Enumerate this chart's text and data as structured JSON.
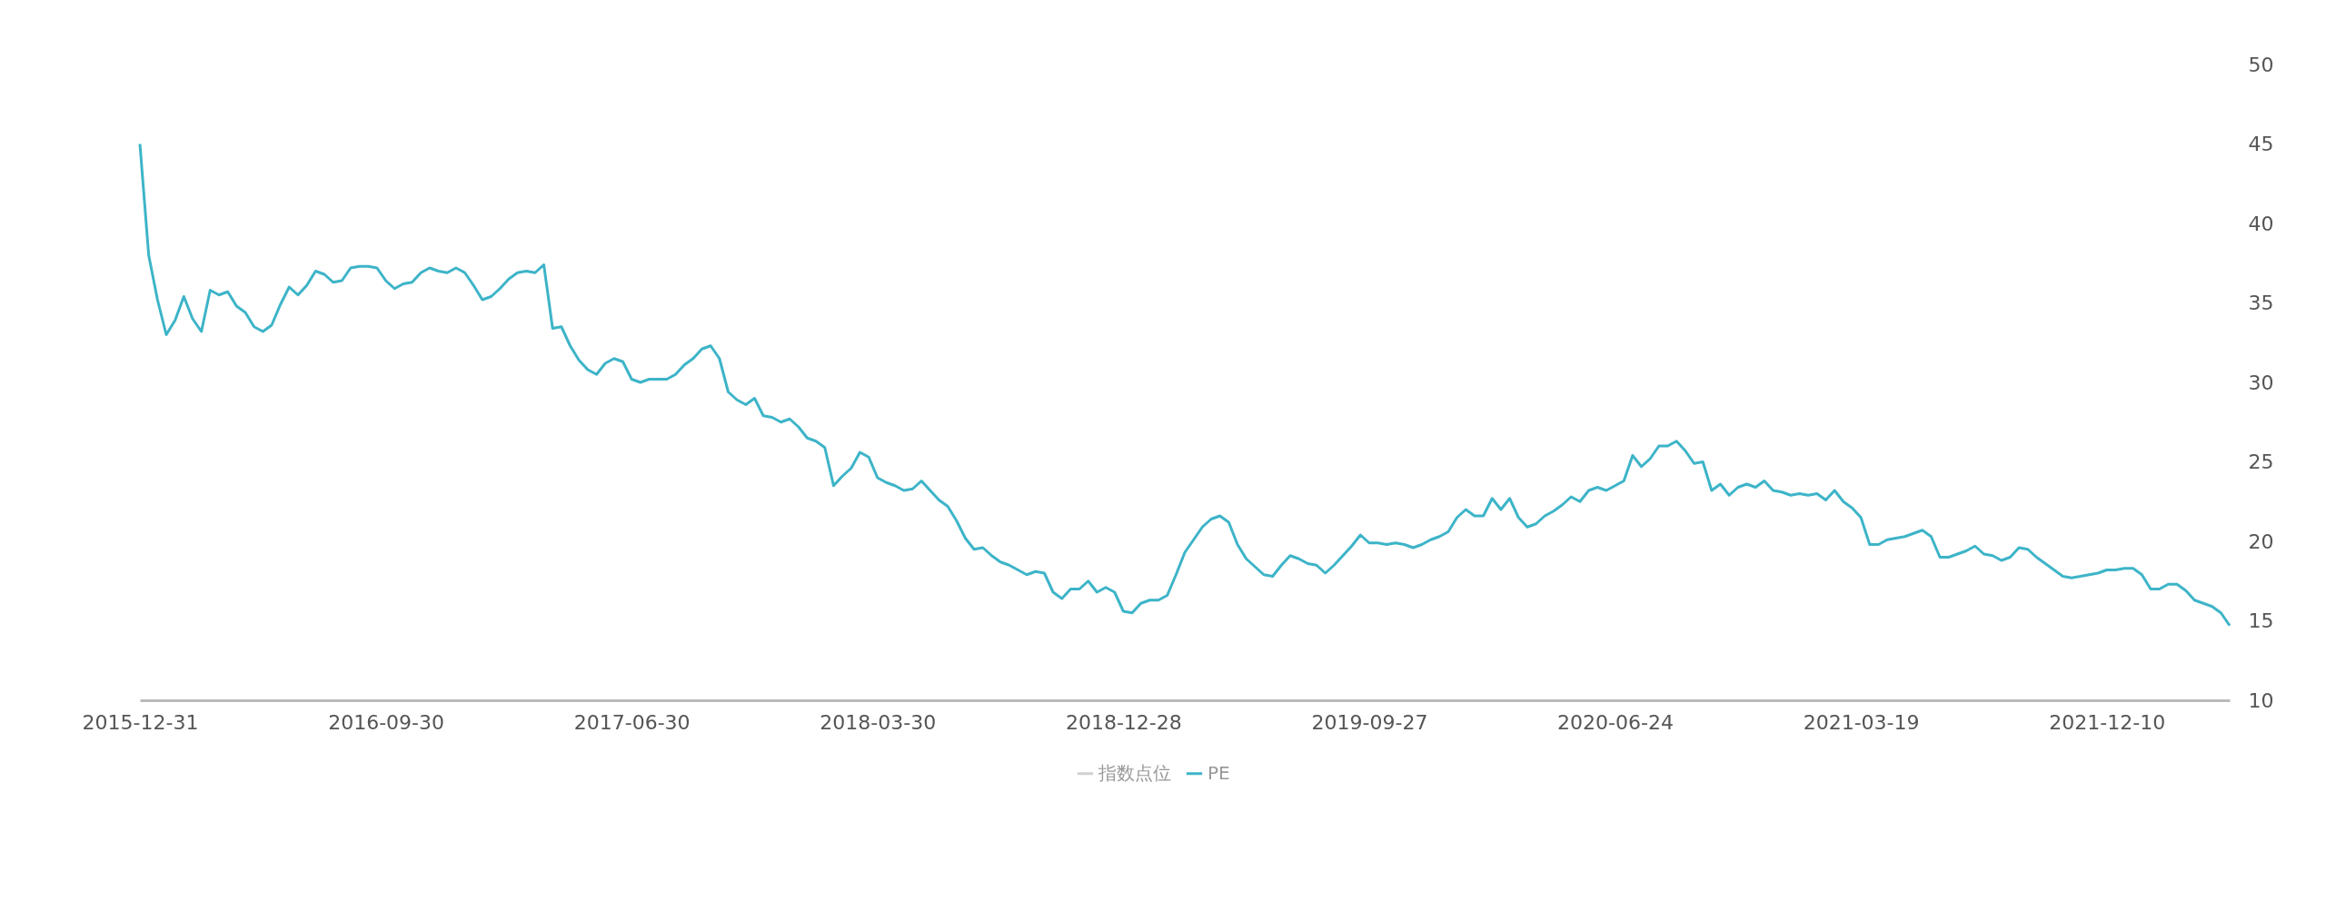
{
  "chart_data": {
    "type": "line",
    "categories": [
      "2015-12-31",
      null,
      null,
      null,
      null,
      null,
      null,
      null,
      null,
      null,
      null,
      null,
      null,
      null,
      null,
      null,
      null,
      null,
      null,
      null,
      null,
      null,
      null,
      null,
      null,
      null,
      null,
      null,
      "2016-09-30",
      null,
      null,
      null,
      null,
      null,
      null,
      null,
      null,
      null,
      null,
      null,
      null,
      null,
      null,
      null,
      null,
      null,
      null,
      null,
      null,
      null,
      null,
      null,
      null,
      null,
      null,
      null,
      "2017-06-30",
      null,
      null,
      null,
      null,
      null,
      null,
      null,
      null,
      null,
      null,
      null,
      null,
      null,
      null,
      null,
      null,
      null,
      null,
      null,
      null,
      null,
      null,
      null,
      null,
      null,
      null,
      null,
      "2018-03-30",
      null,
      null,
      null,
      null,
      null,
      null,
      null,
      null,
      null,
      null,
      null,
      null,
      null,
      null,
      null,
      null,
      null,
      null,
      null,
      null,
      null,
      null,
      null,
      null,
      null,
      null,
      null,
      "2018-12-28",
      null,
      null,
      null,
      null,
      null,
      null,
      null,
      null,
      null,
      null,
      null,
      null,
      null,
      null,
      null,
      null,
      null,
      null,
      null,
      null,
      null,
      null,
      null,
      null,
      null,
      null,
      null,
      "2019-09-27",
      null,
      null,
      null,
      null,
      null,
      null,
      null,
      null,
      null,
      null,
      null,
      null,
      null,
      null,
      null,
      null,
      null,
      null,
      null,
      null,
      null,
      null,
      null,
      null,
      null,
      null,
      null,
      "2020-06-24",
      null,
      null,
      null,
      null,
      null,
      null,
      null,
      null,
      null,
      null,
      null,
      null,
      null,
      null,
      null,
      null,
      null,
      null,
      null,
      null,
      null,
      null,
      null,
      null,
      null,
      null,
      null,
      "2021-03-19",
      null,
      null,
      null,
      null,
      null,
      null,
      null,
      null,
      null,
      null,
      null,
      null,
      null,
      null,
      null,
      null,
      null,
      null,
      null,
      null,
      null,
      null,
      null,
      null,
      null,
      null,
      null,
      "2021-12-10",
      null,
      null,
      null,
      null,
      null,
      null,
      null,
      null,
      null,
      null,
      null,
      null,
      null,
      null
    ],
    "series": [
      {
        "name": "指数点位",
        "color": "#d0d0d0",
        "values": [
          null,
          null,
          null,
          null,
          null,
          null,
          null,
          null,
          null,
          null,
          null,
          null,
          null,
          null,
          null,
          null,
          null,
          null,
          null,
          null,
          null,
          null,
          null,
          null,
          null,
          null,
          null,
          null,
          null,
          null,
          null,
          null,
          null,
          null,
          null,
          null,
          null,
          null,
          null,
          null,
          null,
          null,
          null,
          null,
          null,
          null,
          null,
          null,
          null,
          null,
          null,
          null,
          null,
          null,
          null,
          null,
          null,
          null,
          null,
          null,
          null,
          null,
          null,
          null,
          null,
          null,
          null,
          null,
          null,
          null,
          null,
          null,
          null,
          null,
          null,
          null,
          null,
          null,
          null,
          null,
          null,
          null,
          null,
          null,
          null,
          null,
          null,
          null,
          null,
          null,
          null,
          null,
          null,
          null,
          null,
          null,
          null,
          null,
          null,
          null,
          null,
          null,
          null,
          null,
          null,
          null,
          null,
          null,
          null,
          null,
          null,
          null,
          null,
          null,
          null,
          null,
          null,
          null,
          null,
          null,
          null,
          null,
          null,
          null,
          null,
          null,
          null,
          null,
          null,
          null,
          null,
          null,
          null,
          null,
          null,
          null,
          null,
          null,
          null,
          null,
          null,
          null,
          null,
          null,
          null,
          null,
          null,
          null,
          null,
          null,
          null,
          null,
          null,
          null,
          null,
          null,
          null,
          null,
          null,
          null,
          null,
          null,
          null,
          null,
          null,
          null,
          null,
          null,
          null,
          null,
          null,
          null,
          null,
          null,
          null,
          null,
          null,
          null,
          null,
          null,
          null,
          null,
          null,
          null,
          null,
          null,
          null,
          null,
          null,
          null,
          null,
          null,
          null,
          null,
          null,
          null,
          null,
          null,
          null,
          null,
          null,
          null,
          null,
          null,
          null,
          null,
          null,
          null,
          null,
          null,
          null,
          null,
          null,
          null,
          null,
          null,
          null,
          null,
          null,
          null,
          null,
          null,
          null,
          null,
          null,
          null,
          null,
          null,
          null,
          null,
          null,
          null,
          null,
          null,
          null,
          null,
          null,
          null,
          null
        ]
      },
      {
        "name": "PE",
        "color": "#3db4c8",
        "values": [
          45.0,
          38.0,
          35.2,
          33.0,
          33.9,
          35.4,
          34.0,
          33.2,
          35.8,
          35.5,
          35.7,
          34.8,
          34.4,
          33.5,
          33.2,
          33.6,
          34.9,
          36.0,
          35.5,
          36.1,
          37.0,
          36.8,
          36.3,
          36.4,
          37.2,
          37.3,
          37.3,
          37.2,
          36.4,
          35.9,
          36.2,
          36.3,
          36.9,
          37.2,
          37.0,
          36.9,
          37.2,
          36.9,
          36.1,
          35.2,
          35.4,
          35.9,
          36.5,
          36.9,
          37.0,
          36.9,
          37.4,
          33.4,
          33.5,
          32.3,
          31.4,
          30.8,
          30.5,
          31.2,
          31.5,
          31.3,
          30.2,
          30.0,
          30.2,
          30.2,
          30.2,
          30.5,
          31.1,
          31.5,
          32.1,
          32.3,
          31.5,
          29.4,
          28.9,
          28.6,
          29.0,
          27.9,
          27.8,
          27.5,
          27.7,
          27.2,
          26.5,
          26.3,
          25.9,
          23.5,
          24.1,
          24.6,
          25.6,
          25.3,
          24.0,
          23.7,
          23.5,
          23.2,
          23.3,
          23.8,
          23.2,
          22.6,
          22.2,
          21.3,
          20.2,
          19.5,
          19.6,
          19.1,
          18.7,
          18.5,
          18.2,
          17.9,
          18.1,
          18.0,
          16.8,
          16.4,
          17.0,
          17.0,
          17.5,
          16.8,
          17.1,
          16.8,
          15.6,
          15.5,
          16.1,
          16.3,
          16.3,
          16.6,
          17.9,
          19.3,
          20.1,
          20.9,
          21.4,
          21.6,
          21.2,
          19.8,
          18.9,
          18.4,
          17.9,
          17.8,
          18.5,
          19.1,
          18.9,
          18.6,
          18.5,
          18.0,
          18.5,
          19.1,
          19.7,
          20.4,
          19.9,
          19.9,
          19.8,
          19.9,
          19.8,
          19.6,
          19.8,
          20.1,
          20.3,
          20.6,
          21.5,
          22.0,
          21.6,
          21.6,
          22.7,
          22.0,
          22.7,
          21.5,
          20.9,
          21.1,
          21.6,
          21.9,
          22.3,
          22.8,
          22.5,
          23.2,
          23.4,
          23.2,
          23.5,
          23.8,
          25.4,
          24.7,
          25.2,
          26.0,
          26.0,
          26.3,
          25.7,
          24.9,
          25.0,
          23.2,
          23.6,
          22.9,
          23.4,
          23.6,
          23.4,
          23.8,
          23.2,
          23.1,
          22.9,
          23.0,
          22.9,
          23.0,
          22.6,
          23.2,
          22.5,
          22.1,
          21.5,
          19.8,
          19.8,
          20.1,
          20.2,
          20.3,
          20.5,
          20.7,
          20.3,
          19.0,
          19.0,
          19.2,
          19.4,
          19.7,
          19.2,
          19.1,
          18.8,
          19.0,
          19.6,
          19.5,
          19.0,
          18.6,
          18.2,
          17.8,
          17.7,
          17.8,
          17.9,
          18.0,
          18.2,
          18.2,
          18.3,
          18.3,
          17.9,
          17.0,
          17.0,
          17.3,
          17.3,
          16.9,
          16.3,
          16.1,
          15.9,
          15.5,
          14.7
        ]
      }
    ],
    "ylim": [
      10,
      50
    ],
    "yticks": [
      10,
      15,
      20,
      25,
      30,
      35,
      40,
      45,
      50
    ],
    "grid": false,
    "legend": "bottom",
    "marker": "none",
    "line_style": "solid"
  }
}
